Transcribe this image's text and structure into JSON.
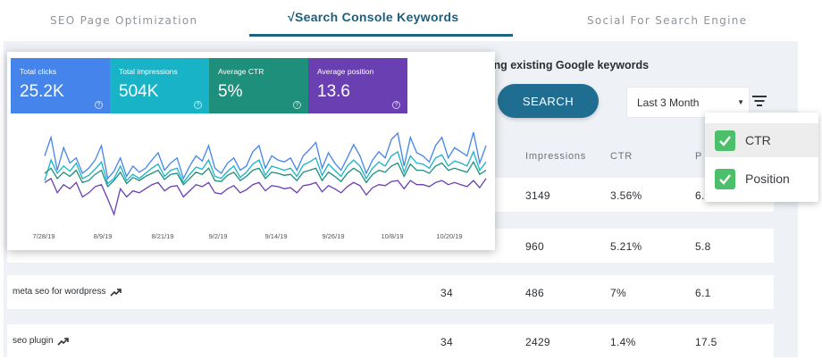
{
  "tabs": [
    {
      "label": "SEO Page Optimization"
    },
    {
      "label": "√Search Console Keywords"
    },
    {
      "label": "Social For Search Engine"
    }
  ],
  "heading": "ing existing Google keywords",
  "search_button": "SEARCH",
  "date_range": "Last 3 Month",
  "columns": {
    "impressions": "Impressions",
    "ctr": "CTR",
    "position": "P"
  },
  "rows": [
    {
      "keyword": "",
      "clicks": "",
      "impressions": "3149",
      "ctr": "3.56%",
      "position": "6."
    },
    {
      "keyword": "",
      "clicks": "",
      "impressions": "960",
      "ctr": "5.21%",
      "position": "5.8"
    },
    {
      "keyword": "meta seo for wordpress",
      "clicks": "34",
      "impressions": "486",
      "ctr": "7%",
      "position": "6.1"
    },
    {
      "keyword": "seo plugin",
      "clicks": "34",
      "impressions": "2429",
      "ctr": "1.4%",
      "position": "17.5"
    }
  ],
  "column_menu": [
    {
      "label": "CTR",
      "checked": true
    },
    {
      "label": "Position",
      "checked": true
    }
  ],
  "stats": [
    {
      "label": "Total clicks",
      "value": "25.2K",
      "color": "#4584ea"
    },
    {
      "label": "Total impressions",
      "value": "504K",
      "color": "#18b3c7"
    },
    {
      "label": "Average CTR",
      "value": "5%",
      "color": "#1d8f7a"
    },
    {
      "label": "Average position",
      "value": "13.6",
      "color": "#6a3fb2"
    }
  ],
  "chart_data": {
    "type": "line",
    "x_ticks": [
      "7/28/19",
      "8/9/19",
      "8/21/19",
      "9/2/19",
      "9/14/19",
      "9/26/19",
      "10/8/19",
      "10/20/19"
    ],
    "series": [
      {
        "color": "#4584ea",
        "values": [
          62,
          80,
          48,
          70,
          55,
          60,
          45,
          50,
          58,
          72,
          40,
          47,
          60,
          42,
          52,
          46,
          50,
          58,
          65,
          48,
          55,
          60,
          40,
          52,
          62,
          57,
          72,
          50,
          45,
          55,
          60,
          48,
          52,
          66,
          72,
          50,
          62,
          58,
          56,
          60,
          48,
          62,
          68,
          75,
          50,
          65,
          55,
          48,
          60,
          73,
          62,
          45,
          58,
          66,
          60,
          78,
          84,
          52,
          80,
          65,
          62,
          56,
          72,
          80,
          60,
          70,
          66,
          62,
          85,
          55,
          72
        ]
      },
      {
        "color": "#18b3c7",
        "values": [
          38,
          58,
          45,
          52,
          47,
          55,
          40,
          43,
          49,
          56,
          35,
          40,
          52,
          38,
          44,
          40,
          45,
          50,
          54,
          42,
          48,
          50,
          36,
          44,
          51,
          49,
          58,
          42,
          40,
          47,
          52,
          41,
          46,
          54,
          58,
          43,
          52,
          50,
          48,
          50,
          42,
          53,
          56,
          60,
          43,
          54,
          48,
          42,
          52,
          58,
          52,
          40,
          50,
          56,
          52,
          62,
          66,
          46,
          62,
          55,
          54,
          50,
          60,
          63,
          52,
          57,
          55,
          52,
          66,
          48,
          56
        ]
      },
      {
        "color": "#1d8f7a",
        "values": [
          45,
          50,
          40,
          46,
          42,
          48,
          36,
          38,
          44,
          48,
          32,
          38,
          46,
          35,
          41,
          38,
          42,
          45,
          48,
          39,
          44,
          45,
          34,
          40,
          46,
          44,
          50,
          38,
          37,
          43,
          46,
          38,
          42,
          48,
          50,
          40,
          46,
          45,
          43,
          44,
          38,
          46,
          48,
          50,
          38,
          46,
          42,
          37,
          45,
          50,
          46,
          36,
          44,
          48,
          46,
          52,
          55,
          42,
          54,
          48,
          48,
          45,
          52,
          55,
          48,
          50,
          48,
          46,
          56,
          44,
          48
        ]
      },
      {
        "color": "#6a3fb2",
        "values": [
          36,
          40,
          26,
          34,
          30,
          36,
          22,
          26,
          32,
          34,
          20,
          5,
          30,
          22,
          28,
          26,
          30,
          34,
          36,
          28,
          32,
          33,
          22,
          28,
          34,
          32,
          36,
          26,
          25,
          30,
          33,
          26,
          29,
          34,
          36,
          28,
          33,
          32,
          30,
          31,
          26,
          33,
          34,
          36,
          27,
          33,
          30,
          26,
          32,
          36,
          33,
          24,
          31,
          34,
          33,
          37,
          38,
          30,
          38,
          34,
          34,
          32,
          36,
          38,
          34,
          36,
          34,
          32,
          38,
          31,
          40
        ]
      }
    ]
  }
}
